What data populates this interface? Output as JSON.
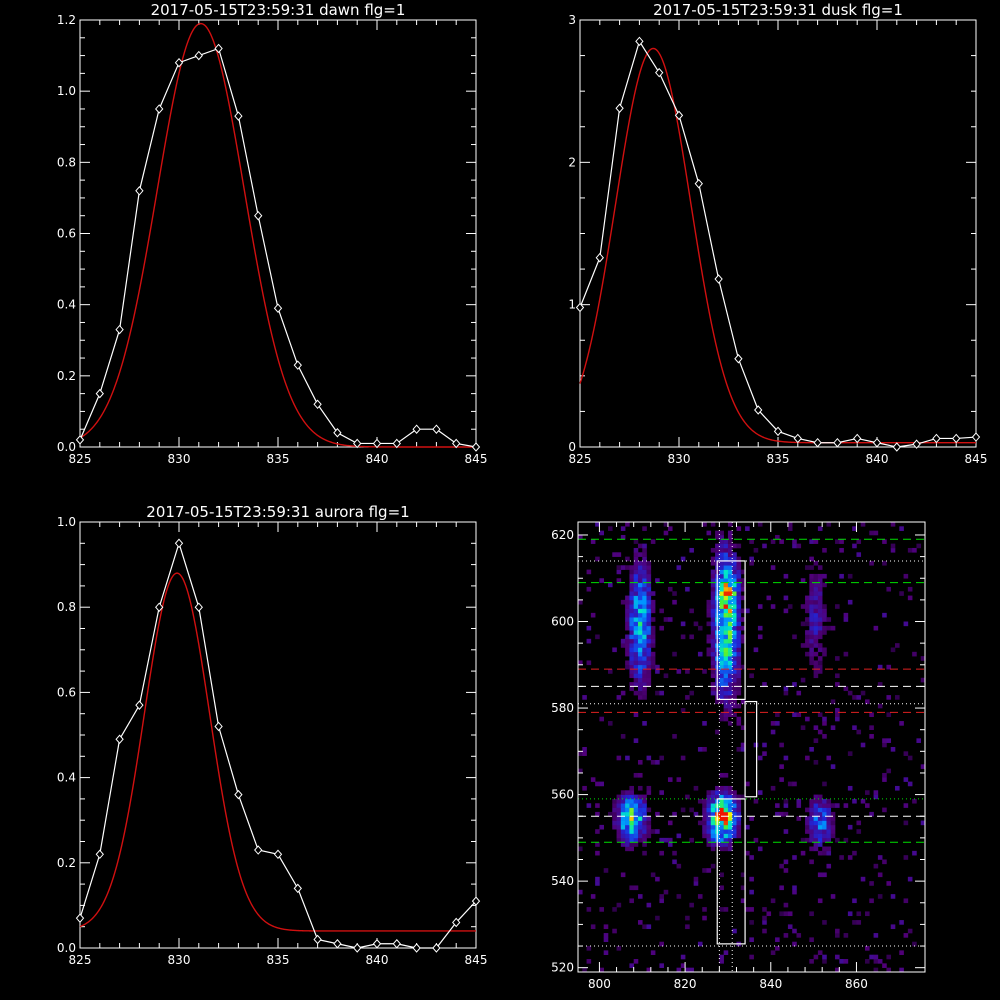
{
  "chart_data": [
    {
      "type": "line",
      "id": "dawn",
      "title": "2017-05-15T23:59:31 dawn flg=1",
      "xlim": [
        825,
        845
      ],
      "ylim": [
        0,
        1.2
      ],
      "xticks": [
        825,
        830,
        835,
        840,
        845
      ],
      "xtick_labels": [
        "825",
        "830",
        "835",
        "840",
        "845"
      ],
      "yticks": [
        0,
        0.2,
        0.4,
        0.6,
        0.8,
        1.0,
        1.2
      ],
      "ytick_labels": [
        "0.0",
        "0.2",
        "0.4",
        "0.6",
        "0.8",
        "1.0",
        "1.2"
      ],
      "observed": {
        "x": [
          825,
          826,
          827,
          828,
          829,
          830,
          831,
          832,
          833,
          834,
          835,
          836,
          837,
          838,
          839,
          840,
          841,
          842,
          843,
          844,
          845
        ],
        "y": [
          0.02,
          0.15,
          0.33,
          0.72,
          0.95,
          1.08,
          1.1,
          1.12,
          0.93,
          0.65,
          0.39,
          0.23,
          0.12,
          0.04,
          0.01,
          0.01,
          0.01,
          0.05,
          0.05,
          0.01,
          0.0
        ]
      },
      "fit": {
        "amplitude": 1.19,
        "center": 831.1,
        "sigma": 2.2,
        "offset": 0.0
      }
    },
    {
      "type": "line",
      "id": "dusk",
      "title": "2017-05-15T23:59:31 dusk flg=1",
      "xlim": [
        825,
        845
      ],
      "ylim": [
        0,
        3
      ],
      "xticks": [
        825,
        830,
        835,
        840,
        845
      ],
      "xtick_labels": [
        "825",
        "830",
        "835",
        "840",
        "845"
      ],
      "yticks": [
        0,
        1,
        2,
        3
      ],
      "ytick_labels": [
        "0",
        "1",
        "2",
        "3"
      ],
      "observed": {
        "x": [
          825,
          826,
          827,
          828,
          829,
          830,
          831,
          832,
          833,
          834,
          835,
          836,
          837,
          838,
          839,
          840,
          841,
          842,
          843,
          844,
          845
        ],
        "y": [
          0.98,
          1.33,
          2.38,
          2.85,
          2.63,
          2.33,
          1.85,
          1.18,
          0.62,
          0.26,
          0.11,
          0.06,
          0.03,
          0.03,
          0.06,
          0.03,
          0.0,
          0.02,
          0.06,
          0.06,
          0.07
        ]
      },
      "fit": {
        "amplitude": 2.77,
        "center": 828.7,
        "sigma": 1.9,
        "offset": 0.03
      }
    },
    {
      "type": "line",
      "id": "aurora",
      "title": "2017-05-15T23:59:31 aurora flg=1",
      "xlim": [
        825,
        845
      ],
      "ylim": [
        0,
        1.0
      ],
      "xticks": [
        825,
        830,
        835,
        840,
        845
      ],
      "xtick_labels": [
        "825",
        "830",
        "835",
        "840",
        "845"
      ],
      "yticks": [
        0,
        0.2,
        0.4,
        0.6,
        0.8,
        1.0
      ],
      "ytick_labels": [
        "0.0",
        "0.2",
        "0.4",
        "0.6",
        "0.8",
        "1.0"
      ],
      "observed": {
        "x": [
          825,
          826,
          827,
          828,
          829,
          830,
          831,
          832,
          833,
          834,
          835,
          836,
          837,
          838,
          839,
          840,
          841,
          842,
          843,
          844,
          845
        ],
        "y": [
          0.07,
          0.22,
          0.49,
          0.57,
          0.8,
          0.95,
          0.8,
          0.52,
          0.36,
          0.23,
          0.22,
          0.14,
          0.02,
          0.01,
          0.0,
          0.01,
          0.01,
          0.0,
          0.0,
          0.06,
          0.11
        ]
      },
      "fit": {
        "amplitude": 0.84,
        "center": 829.9,
        "sigma": 1.65,
        "offset": 0.04
      }
    },
    {
      "type": "heatmap",
      "id": "image",
      "title": "",
      "xlim": [
        795,
        876
      ],
      "ylim": [
        519,
        623
      ],
      "xticks": [
        800,
        820,
        840,
        860
      ],
      "xtick_labels": [
        "800",
        "820",
        "840",
        "860"
      ],
      "yticks": [
        520,
        540,
        560,
        580,
        600,
        620
      ],
      "ytick_labels": [
        "520",
        "540",
        "560",
        "580",
        "600",
        "620"
      ],
      "blobs": [
        {
          "x": 809,
          "y": 599,
          "sx": 1.8,
          "sy": 9.0,
          "amp": 0.5
        },
        {
          "x": 829,
          "y": 599,
          "sx": 2.0,
          "sy": 11.0,
          "amp": 0.65
        },
        {
          "x": 830,
          "y": 606,
          "sx": 1.5,
          "sy": 3.0,
          "amp": 0.3
        },
        {
          "x": 850,
          "y": 600,
          "sx": 2.0,
          "sy": 9.0,
          "amp": 0.18
        },
        {
          "x": 807,
          "y": 554,
          "sx": 2.2,
          "sy": 3.5,
          "amp": 0.65
        },
        {
          "x": 828,
          "y": 554,
          "sx": 2.2,
          "sy": 3.5,
          "amp": 0.85
        },
        {
          "x": 829,
          "y": 556,
          "sx": 1.2,
          "sy": 1.5,
          "amp": 0.35
        },
        {
          "x": 851,
          "y": 553,
          "sx": 2.0,
          "sy": 4.0,
          "amp": 0.35
        }
      ],
      "hlines": [
        {
          "y": 619,
          "color": "#00e000",
          "style": "dashed"
        },
        {
          "y": 609,
          "color": "#00e000",
          "style": "dashed"
        },
        {
          "y": 589,
          "color": "#e02020",
          "style": "dashed"
        },
        {
          "y": 585,
          "color": "#ffffff",
          "style": "dashed"
        },
        {
          "y": 579,
          "color": "#e02020",
          "style": "dashed"
        },
        {
          "y": 559,
          "color": "#00e000",
          "style": "dotted"
        },
        {
          "y": 555,
          "color": "#ffffff",
          "style": "dashed"
        },
        {
          "y": 549,
          "color": "#00e000",
          "style": "dashed"
        },
        {
          "y": 614,
          "color": "#ffffff",
          "style": "dotted"
        },
        {
          "y": 581,
          "color": "#ffffff",
          "style": "dotted"
        },
        {
          "y": 525,
          "color": "#ffffff",
          "style": "dotted"
        }
      ],
      "vlines": [
        {
          "x": 828,
          "color": "#ffffff",
          "style": "dotted"
        },
        {
          "x": 831,
          "color": "#ffffff",
          "style": "dotted"
        }
      ],
      "boxes": [
        {
          "x0": 827.5,
          "x1": 834.0,
          "y0": 582,
          "y1": 614
        },
        {
          "x0": 834.0,
          "x1": 836.7,
          "y0": 559.5,
          "y1": 581.5
        },
        {
          "x0": 827.5,
          "x1": 834.0,
          "y0": 525.5,
          "y1": 559.0
        }
      ]
    }
  ]
}
